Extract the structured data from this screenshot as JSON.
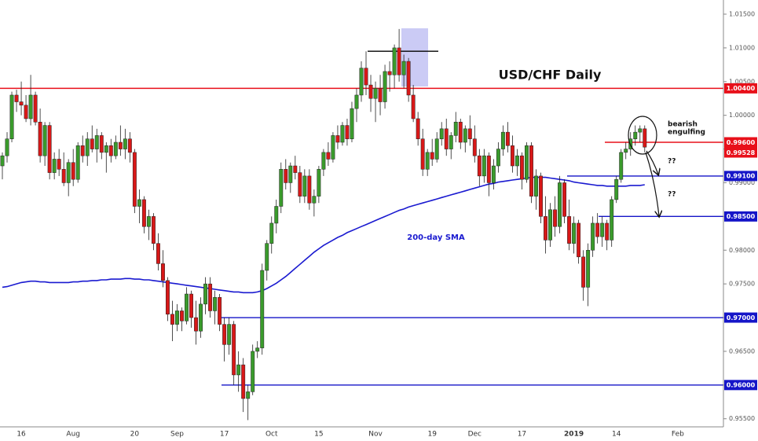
{
  "chart_data": {
    "type": "candlestick",
    "title": "USD/CHF Daily",
    "categories": [
      null,
      null,
      null,
      null,
      "16",
      null,
      null,
      null,
      null,
      null,
      null,
      null,
      null,
      null,
      null,
      "Aug",
      null,
      null,
      null,
      null,
      null,
      null,
      null,
      null,
      null,
      null,
      null,
      null,
      "20",
      null,
      null,
      null,
      null,
      null,
      null,
      null,
      null,
      "Sep",
      null,
      null,
      null,
      null,
      null,
      null,
      null,
      null,
      null,
      "17",
      null,
      null,
      null,
      null,
      null,
      null,
      null,
      null,
      null,
      "Oct",
      null,
      null,
      null,
      null,
      null,
      null,
      null,
      null,
      null,
      "15",
      null,
      null,
      null,
      null,
      null,
      null,
      null,
      null,
      null,
      null,
      null,
      "Nov",
      null,
      null,
      null,
      null,
      null,
      null,
      null,
      null,
      null,
      null,
      null,
      "19",
      null,
      null,
      null,
      null,
      null,
      null,
      null,
      null,
      "Dec",
      null,
      null,
      null,
      null,
      null,
      null,
      null,
      null,
      null,
      "17",
      null,
      null,
      null,
      null,
      null,
      null,
      null,
      null,
      null,
      null,
      "2019",
      null,
      null,
      null,
      null,
      null,
      null,
      null,
      null,
      "14",
      null,
      null,
      null,
      null,
      null,
      null,
      null,
      null,
      null,
      null,
      null,
      null,
      "Feb",
      null,
      null,
      null,
      null,
      null,
      null,
      null,
      null,
      null
    ],
    "ohlc": [
      [
        0.9925,
        0.9945,
        0.9905,
        0.994
      ],
      [
        0.994,
        0.9975,
        0.993,
        0.9965
      ],
      [
        0.9965,
        1.0035,
        0.996,
        1.003
      ],
      [
        1.003,
        1.0038,
        1.0005,
        1.002
      ],
      [
        1.002,
        1.005,
        1.0,
        1.0015
      ],
      [
        1.0015,
        1.003,
        0.999,
        0.9995
      ],
      [
        0.9995,
        1.006,
        0.9985,
        1.003
      ],
      [
        1.003,
        1.0035,
        0.9985,
        0.999
      ],
      [
        0.999,
        1.001,
        0.993,
        0.994
      ],
      [
        0.994,
        0.999,
        0.9925,
        0.9985
      ],
      [
        0.9985,
        0.999,
        0.9905,
        0.9915
      ],
      [
        0.9915,
        0.9945,
        0.9905,
        0.9935
      ],
      [
        0.9935,
        0.995,
        0.991,
        0.992
      ],
      [
        0.992,
        0.9945,
        0.9895,
        0.99
      ],
      [
        0.99,
        0.9935,
        0.988,
        0.993
      ],
      [
        0.993,
        0.995,
        0.9895,
        0.9905
      ],
      [
        0.9905,
        0.996,
        0.99,
        0.9955
      ],
      [
        0.9955,
        0.997,
        0.993,
        0.994
      ],
      [
        0.994,
        0.9975,
        0.9925,
        0.9965
      ],
      [
        0.9965,
        0.9985,
        0.9945,
        0.995
      ],
      [
        0.995,
        0.998,
        0.993,
        0.997
      ],
      [
        0.997,
        0.9975,
        0.9935,
        0.9945
      ],
      [
        0.9945,
        0.996,
        0.9915,
        0.9955
      ],
      [
        0.9955,
        0.9965,
        0.993,
        0.994
      ],
      [
        0.994,
        0.997,
        0.9935,
        0.996
      ],
      [
        0.996,
        0.9985,
        0.994,
        0.995
      ],
      [
        0.995,
        0.998,
        0.9935,
        0.9965
      ],
      [
        0.9965,
        0.9975,
        0.993,
        0.9945
      ],
      [
        0.9945,
        0.995,
        0.9855,
        0.9865
      ],
      [
        0.9865,
        0.989,
        0.984,
        0.9875
      ],
      [
        0.9875,
        0.988,
        0.9825,
        0.9835
      ],
      [
        0.9835,
        0.986,
        0.9815,
        0.985
      ],
      [
        0.985,
        0.9855,
        0.98,
        0.981
      ],
      [
        0.981,
        0.9825,
        0.977,
        0.978
      ],
      [
        0.978,
        0.98,
        0.9745,
        0.9755
      ],
      [
        0.9755,
        0.976,
        0.9695,
        0.9705
      ],
      [
        0.9705,
        0.9725,
        0.9665,
        0.969
      ],
      [
        0.969,
        0.972,
        0.968,
        0.971
      ],
      [
        0.971,
        0.9715,
        0.968,
        0.9695
      ],
      [
        0.9695,
        0.9745,
        0.969,
        0.9735
      ],
      [
        0.9735,
        0.974,
        0.9685,
        0.97
      ],
      [
        0.97,
        0.9725,
        0.966,
        0.968
      ],
      [
        0.968,
        0.973,
        0.967,
        0.972
      ],
      [
        0.972,
        0.976,
        0.9705,
        0.975
      ],
      [
        0.975,
        0.976,
        0.97,
        0.971
      ],
      [
        0.971,
        0.974,
        0.969,
        0.973
      ],
      [
        0.973,
        0.9735,
        0.968,
        0.969
      ],
      [
        0.969,
        0.97,
        0.9635,
        0.966
      ],
      [
        0.966,
        0.97,
        0.9645,
        0.969
      ],
      [
        0.969,
        0.9695,
        0.96,
        0.9615
      ],
      [
        0.9615,
        0.965,
        0.959,
        0.963
      ],
      [
        0.963,
        0.964,
        0.956,
        0.958
      ],
      [
        0.958,
        0.96,
        0.9548,
        0.959
      ],
      [
        0.959,
        0.966,
        0.9585,
        0.965
      ],
      [
        0.965,
        0.9665,
        0.964,
        0.9655
      ],
      [
        0.9655,
        0.978,
        0.9645,
        0.977
      ],
      [
        0.977,
        0.9815,
        0.9755,
        0.981
      ],
      [
        0.981,
        0.985,
        0.9795,
        0.984
      ],
      [
        0.984,
        0.9875,
        0.9825,
        0.9865
      ],
      [
        0.9865,
        0.993,
        0.9855,
        0.992
      ],
      [
        0.992,
        0.9935,
        0.989,
        0.99
      ],
      [
        0.99,
        0.993,
        0.9885,
        0.9925
      ],
      [
        0.9925,
        0.994,
        0.9905,
        0.9915
      ],
      [
        0.9915,
        0.9925,
        0.987,
        0.988
      ],
      [
        0.988,
        0.992,
        0.987,
        0.991
      ],
      [
        0.991,
        0.992,
        0.986,
        0.987
      ],
      [
        0.987,
        0.989,
        0.985,
        0.988
      ],
      [
        0.988,
        0.9925,
        0.987,
        0.992
      ],
      [
        0.992,
        0.995,
        0.991,
        0.9945
      ],
      [
        0.9945,
        0.996,
        0.9925,
        0.9935
      ],
      [
        0.9935,
        0.9975,
        0.993,
        0.997
      ],
      [
        0.997,
        0.9985,
        0.995,
        0.996
      ],
      [
        0.996,
        0.999,
        0.9955,
        0.9985
      ],
      [
        0.9985,
        0.9995,
        0.9955,
        0.9965
      ],
      [
        0.9965,
        1.002,
        0.996,
        1.001
      ],
      [
        1.001,
        1.004,
        0.999,
        1.003
      ],
      [
        1.003,
        1.008,
        1.002,
        1.007
      ],
      [
        1.007,
        1.0095,
        1.003,
        1.0045
      ],
      [
        1.0045,
        1.006,
        1.0005,
        1.0025
      ],
      [
        1.0025,
        1.005,
        0.999,
        1.004
      ],
      [
        1.004,
        1.006,
        1.0,
        1.002
      ],
      [
        1.002,
        1.0075,
        1.001,
        1.0065
      ],
      [
        1.0065,
        1.008,
        1.0035,
        1.006
      ],
      [
        1.006,
        1.0105,
        1.004,
        1.01
      ],
      [
        1.01,
        1.0128,
        1.005,
        1.006
      ],
      [
        1.006,
        1.009,
        1.004,
        1.008
      ],
      [
        1.008,
        1.0085,
        1.002,
        1.003
      ],
      [
        1.003,
        1.0045,
        0.999,
        0.9995
      ],
      [
        0.9995,
        1.0005,
        0.9955,
        0.9965
      ],
      [
        0.9965,
        0.998,
        0.991,
        0.992
      ],
      [
        0.992,
        0.995,
        0.991,
        0.9945
      ],
      [
        0.9945,
        0.9965,
        0.9925,
        0.9935
      ],
      [
        0.9935,
        0.9975,
        0.993,
        0.9965
      ],
      [
        0.9965,
        0.999,
        0.9955,
        0.998
      ],
      [
        0.998,
        0.9995,
        0.994,
        0.995
      ],
      [
        0.995,
        0.9975,
        0.9935,
        0.997
      ],
      [
        0.997,
        1.0005,
        0.996,
        0.999
      ],
      [
        0.999,
        0.9995,
        0.995,
        0.996
      ],
      [
        0.996,
        0.9985,
        0.9945,
        0.998
      ],
      [
        0.998,
        1.0,
        0.9955,
        0.9965
      ],
      [
        0.9965,
        0.9985,
        0.993,
        0.994
      ],
      [
        0.994,
        0.995,
        0.9895,
        0.991
      ],
      [
        0.991,
        0.995,
        0.99,
        0.994
      ],
      [
        0.994,
        0.9945,
        0.988,
        0.99
      ],
      [
        0.99,
        0.9935,
        0.989,
        0.9925
      ],
      [
        0.9925,
        0.996,
        0.9915,
        0.995
      ],
      [
        0.995,
        0.9985,
        0.994,
        0.9975
      ],
      [
        0.9975,
        0.999,
        0.9945,
        0.9955
      ],
      [
        0.9955,
        0.997,
        0.9915,
        0.9925
      ],
      [
        0.9925,
        0.995,
        0.991,
        0.994
      ],
      [
        0.994,
        0.9945,
        0.989,
        0.9905
      ],
      [
        0.9905,
        0.996,
        0.99,
        0.9955
      ],
      [
        0.9955,
        0.996,
        0.987,
        0.988
      ],
      [
        0.988,
        0.992,
        0.986,
        0.991
      ],
      [
        0.991,
        0.9915,
        0.984,
        0.985
      ],
      [
        0.985,
        0.988,
        0.9795,
        0.9815
      ],
      [
        0.9815,
        0.987,
        0.9805,
        0.986
      ],
      [
        0.986,
        0.988,
        0.982,
        0.9835
      ],
      [
        0.9835,
        0.991,
        0.9825,
        0.99
      ],
      [
        0.99,
        0.9905,
        0.984,
        0.985
      ],
      [
        0.985,
        0.9875,
        0.98,
        0.981
      ],
      [
        0.981,
        0.985,
        0.9795,
        0.984
      ],
      [
        0.984,
        0.9845,
        0.978,
        0.979
      ],
      [
        0.979,
        0.98,
        0.9725,
        0.9745
      ],
      [
        0.9745,
        0.981,
        0.9717,
        0.98
      ],
      [
        0.98,
        0.985,
        0.979,
        0.984
      ],
      [
        0.984,
        0.9855,
        0.981,
        0.982
      ],
      [
        0.982,
        0.985,
        0.9805,
        0.984
      ],
      [
        0.984,
        0.9845,
        0.98,
        0.9815
      ],
      [
        0.9815,
        0.988,
        0.9805,
        0.9875
      ],
      [
        0.9875,
        0.991,
        0.987,
        0.9905
      ],
      [
        0.9905,
        0.995,
        0.99,
        0.9945
      ],
      [
        0.9945,
        0.996,
        0.9935,
        0.995
      ],
      [
        0.995,
        0.9975,
        0.994,
        0.9965
      ],
      [
        0.9965,
        0.9985,
        0.9955,
        0.9975
      ],
      [
        0.9975,
        0.9985,
        0.996,
        0.998
      ],
      [
        0.998,
        0.9985,
        0.9945,
        0.99528
      ],
      null,
      null,
      null,
      null,
      null,
      null,
      null,
      null,
      null,
      null,
      null,
      null,
      null,
      null,
      null,
      null
    ],
    "up_color": "#3a9b2c",
    "down_color": "#d81818",
    "last_price_label": "0.99528",
    "last_price_color": "#e8101a",
    "sma": {
      "name": "200-day SMA",
      "color": "#1a1ad0",
      "values": [
        0.9745,
        0.9746,
        0.9748,
        0.975,
        0.9752,
        0.9753,
        0.9754,
        0.9754,
        0.9753,
        0.9753,
        0.9752,
        0.9752,
        0.9752,
        0.9752,
        0.9752,
        0.9753,
        0.9753,
        0.9754,
        0.9754,
        0.9755,
        0.9755,
        0.9756,
        0.9756,
        0.9757,
        0.9757,
        0.9757,
        0.9758,
        0.9758,
        0.9757,
        0.9757,
        0.9756,
        0.9756,
        0.9755,
        0.9754,
        0.9753,
        0.9752,
        0.9751,
        0.975,
        0.9749,
        0.9748,
        0.9747,
        0.9746,
        0.9745,
        0.9744,
        0.9743,
        0.9742,
        0.9741,
        0.974,
        0.9739,
        0.9738,
        0.9738,
        0.9737,
        0.9737,
        0.9737,
        0.9738,
        0.974,
        0.9743,
        0.9747,
        0.9751,
        0.9756,
        0.9761,
        0.9767,
        0.9773,
        0.9779,
        0.9785,
        0.9791,
        0.9797,
        0.9802,
        0.9807,
        0.9811,
        0.9815,
        0.9819,
        0.9822,
        0.9826,
        0.9829,
        0.9832,
        0.9835,
        0.9838,
        0.9841,
        0.9844,
        0.9847,
        0.985,
        0.9853,
        0.9856,
        0.9859,
        0.9861,
        0.9864,
        0.9866,
        0.9868,
        0.987,
        0.9872,
        0.9874,
        0.9876,
        0.9878,
        0.988,
        0.9882,
        0.9884,
        0.9886,
        0.9888,
        0.989,
        0.9892,
        0.9894,
        0.9896,
        0.9898,
        0.9899,
        0.9901,
        0.9902,
        0.9903,
        0.9904,
        0.9905,
        0.9906,
        0.9907,
        0.9908,
        0.9908,
        0.9908,
        0.9908,
        0.9907,
        0.9906,
        0.9905,
        0.9904,
        0.9903,
        0.9901,
        0.99,
        0.9899,
        0.9898,
        0.9897,
        0.9896,
        0.9896,
        0.9895,
        0.9895,
        0.9895,
        0.9895,
        0.9895,
        0.9896,
        0.9896,
        0.9896,
        0.9897,
        null,
        null,
        null,
        null,
        null,
        null,
        null,
        null,
        null,
        null,
        null,
        null,
        null,
        null,
        null,
        null
      ]
    },
    "ylim": [
      0.9538,
      1.0171
    ],
    "yticks": [
      {
        "value": 1.015,
        "label": "1.01500"
      },
      {
        "value": 1.01,
        "label": "1.01000"
      },
      {
        "value": 1.005,
        "label": "1.00500"
      },
      {
        "value": 1.0,
        "label": "1.00000"
      },
      {
        "value": 0.995,
        "label": "0.99500"
      },
      {
        "value": 0.99,
        "label": "0.99000"
      },
      {
        "value": 0.985,
        "label": "0.98500"
      },
      {
        "value": 0.98,
        "label": "0.98000"
      },
      {
        "value": 0.975,
        "label": "0.97500"
      },
      {
        "value": 0.97,
        "label": "0.97000"
      },
      {
        "value": 0.965,
        "label": "0.96500"
      },
      {
        "value": 0.96,
        "label": "0.96000"
      },
      {
        "value": 0.955,
        "label": "0.95500"
      }
    ],
    "levels": [
      {
        "value": 1.004,
        "label": "1.00400",
        "color": "#e8101a"
      },
      {
        "value": 0.996,
        "label": "0.99600",
        "color": "#e8101a"
      },
      {
        "value": 0.991,
        "label": "0.99100",
        "color": "#1515c8"
      },
      {
        "value": 0.985,
        "label": "0.98500",
        "color": "#1515c8"
      },
      {
        "value": 0.97,
        "label": "0.97000",
        "color": "#1515c8"
      },
      {
        "value": 0.96,
        "label": "0.96000",
        "color": "#1515c8"
      },
      {
        "value": 1.0095,
        "color": "#000000"
      }
    ],
    "pattern_label": [
      "bearish",
      "engulfing"
    ],
    "question_marks": [
      "??",
      "??"
    ]
  }
}
